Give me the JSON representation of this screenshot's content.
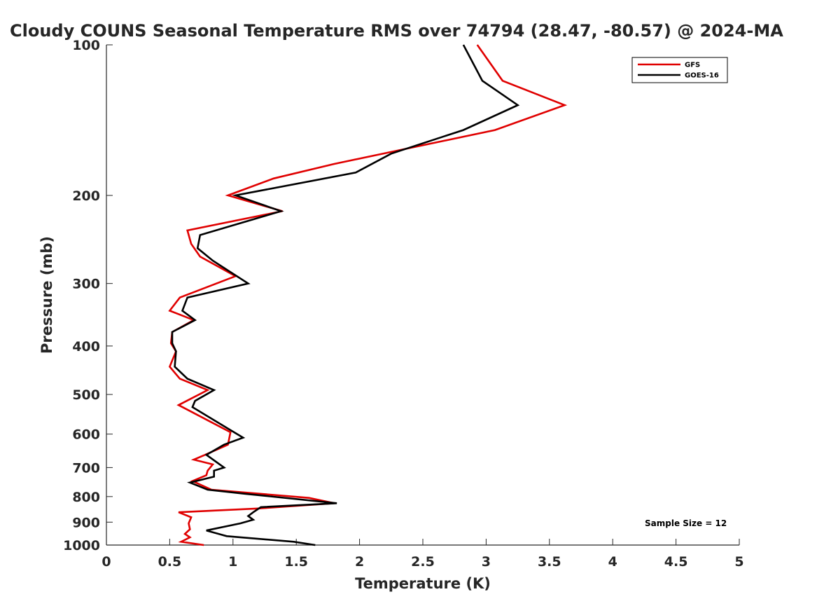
{
  "chart_data": {
    "type": "line",
    "title": "Cloudy COUNS Seasonal Temperature RMS over 74794 (28.47, -80.57) @ 2024-MA",
    "xlabel": "Temperature (K)",
    "ylabel": "Pressure (mb)",
    "xlim": [
      0,
      5
    ],
    "ylim": [
      1000,
      100
    ],
    "y_scale": "log",
    "x_ticks": [
      "0",
      "0.5",
      "1",
      "1.5",
      "2",
      "2.5",
      "3",
      "3.5",
      "4",
      "4.5",
      "5"
    ],
    "y_ticks": [
      "100",
      "200",
      "300",
      "400",
      "500",
      "600",
      "700",
      "800",
      "900",
      "1000"
    ],
    "grid": false,
    "legend_position": "top-right",
    "annotation": "Sample Size = 12",
    "series": [
      {
        "name": "GFS",
        "color": "#e00000",
        "points": [
          [
            2.93,
            100
          ],
          [
            3.13,
            118
          ],
          [
            3.62,
            132
          ],
          [
            3.07,
            148
          ],
          [
            1.8,
            173
          ],
          [
            1.32,
            185
          ],
          [
            0.96,
            200
          ],
          [
            1.39,
            215
          ],
          [
            0.64,
            235
          ],
          [
            0.67,
            250
          ],
          [
            0.74,
            265
          ],
          [
            1.02,
            290
          ],
          [
            0.58,
            320
          ],
          [
            0.5,
            340
          ],
          [
            0.69,
            355
          ],
          [
            0.52,
            375
          ],
          [
            0.51,
            395
          ],
          [
            0.55,
            410
          ],
          [
            0.5,
            440
          ],
          [
            0.58,
            465
          ],
          [
            0.8,
            490
          ],
          [
            0.57,
            525
          ],
          [
            0.98,
            595
          ],
          [
            0.96,
            630
          ],
          [
            0.78,
            660
          ],
          [
            0.69,
            675
          ],
          [
            0.84,
            690
          ],
          [
            0.8,
            710
          ],
          [
            0.79,
            725
          ],
          [
            0.68,
            745
          ],
          [
            0.83,
            775
          ],
          [
            1.6,
            805
          ],
          [
            1.8,
            825
          ],
          [
            1.2,
            845
          ],
          [
            0.57,
            860
          ],
          [
            0.67,
            880
          ],
          [
            0.65,
            905
          ],
          [
            0.66,
            930
          ],
          [
            0.62,
            950
          ],
          [
            0.66,
            965
          ],
          [
            0.59,
            985
          ],
          [
            0.77,
            1000
          ]
        ]
      },
      {
        "name": "GOES-16",
        "color": "#000000",
        "points": [
          [
            2.82,
            100
          ],
          [
            2.97,
            118
          ],
          [
            3.25,
            132
          ],
          [
            2.82,
            148
          ],
          [
            2.25,
            165
          ],
          [
            1.97,
            180
          ],
          [
            1.02,
            200
          ],
          [
            1.38,
            215
          ],
          [
            0.74,
            240
          ],
          [
            0.72,
            255
          ],
          [
            0.84,
            270
          ],
          [
            1.12,
            300
          ],
          [
            0.64,
            320
          ],
          [
            0.6,
            340
          ],
          [
            0.7,
            355
          ],
          [
            0.52,
            375
          ],
          [
            0.52,
            395
          ],
          [
            0.55,
            410
          ],
          [
            0.54,
            440
          ],
          [
            0.64,
            465
          ],
          [
            0.85,
            490
          ],
          [
            0.7,
            515
          ],
          [
            0.68,
            530
          ],
          [
            0.96,
            585
          ],
          [
            1.08,
            610
          ],
          [
            0.93,
            630
          ],
          [
            0.79,
            660
          ],
          [
            0.93,
            700
          ],
          [
            0.85,
            710
          ],
          [
            0.85,
            730
          ],
          [
            0.66,
            750
          ],
          [
            0.8,
            775
          ],
          [
            1.1,
            790
          ],
          [
            1.82,
            825
          ],
          [
            1.22,
            840
          ],
          [
            1.16,
            860
          ],
          [
            1.12,
            875
          ],
          [
            1.16,
            890
          ],
          [
            1.06,
            905
          ],
          [
            0.79,
            935
          ],
          [
            0.95,
            960
          ],
          [
            1.48,
            985
          ],
          [
            1.65,
            1000
          ]
        ]
      }
    ]
  }
}
